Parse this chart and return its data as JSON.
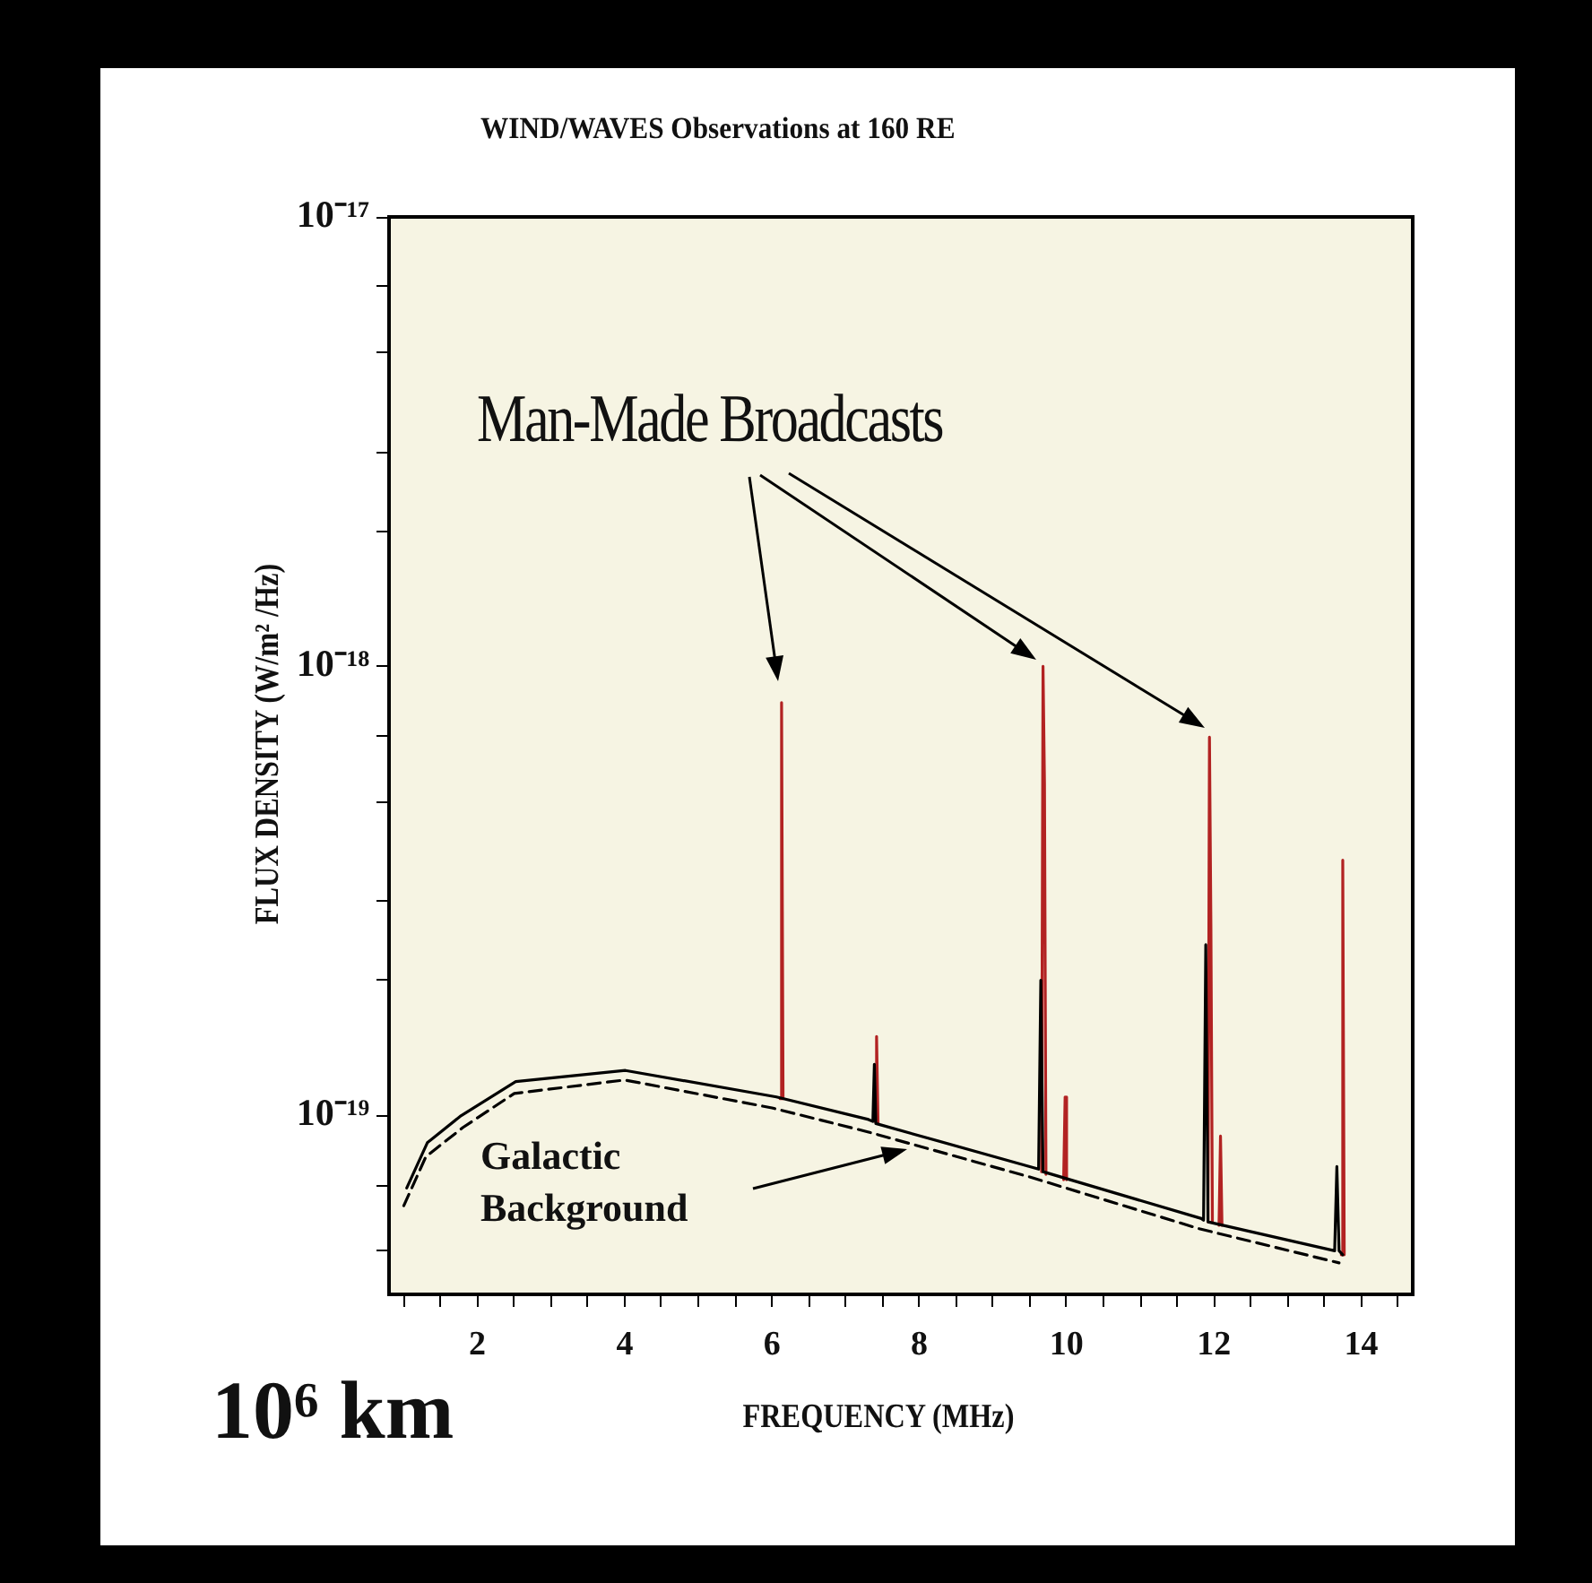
{
  "chart_data": {
    "type": "line",
    "title": "WIND/WAVES Observations at 160 RE",
    "xlabel": "FREQUENCY (MHz)",
    "ylabel": "FLUX DENSITY (W/m² /Hz)",
    "annotations": [
      "Man-Made Broadcasts",
      "Galactic Background",
      "10⁶ km"
    ],
    "log": "y",
    "marker": "none",
    "line_style": "solid",
    "xlim": [
      0.8,
      14.7
    ],
    "xticks": [
      {
        "value": 1,
        "label": null
      },
      {
        "value": 1.5,
        "label": null
      },
      2,
      {
        "value": 2.5,
        "label": null
      },
      {
        "value": 3,
        "label": null
      },
      {
        "value": 3.5,
        "label": null
      },
      4,
      {
        "value": 4.5,
        "label": null
      },
      {
        "value": 5,
        "label": null
      },
      {
        "value": 5.5,
        "label": null
      },
      6,
      {
        "value": 6.5,
        "label": null
      },
      {
        "value": 7,
        "label": null
      },
      {
        "value": 7.5,
        "label": null
      },
      8,
      {
        "value": 8.5,
        "label": null
      },
      {
        "value": 9,
        "label": null
      },
      {
        "value": 9.5,
        "label": null
      },
      10,
      {
        "value": 10.5,
        "label": null
      },
      {
        "value": 11,
        "label": null
      },
      {
        "value": 11.5,
        "label": null
      },
      12,
      {
        "value": 12.5,
        "label": null
      },
      {
        "value": 13,
        "label": null
      },
      {
        "value": 13.5,
        "label": null
      },
      14,
      {
        "value": 14.5,
        "label": null
      }
    ],
    "ylim": [
      4e-20,
      1e-17
    ],
    "yticks": [
      {
        "value": 5e-20,
        "label": null
      },
      {
        "value": 7e-20,
        "label": null
      },
      {
        "value": 1e-19,
        "label": "10⁻¹⁹"
      },
      {
        "value": 2e-19,
        "label": null
      },
      {
        "value": 3e-19,
        "label": null
      },
      {
        "value": 5e-19,
        "label": null
      },
      {
        "value": 7e-19,
        "label": null
      },
      {
        "value": 1e-18,
        "label": "10⁻¹⁸"
      },
      {
        "value": 2e-18,
        "label": null
      },
      {
        "value": 3e-18,
        "label": null
      },
      {
        "value": 5e-18,
        "label": null
      },
      {
        "value": 7e-18,
        "label": null
      },
      {
        "value": 1e-17,
        "label": "10⁻¹⁷"
      }
    ],
    "series": [
      {
        "color": "#000000",
        "x": [
          1.04,
          1.32,
          1.78,
          2.52,
          4.01,
          6.06,
          7.31,
          7.37,
          7.39,
          7.41,
          9.5,
          9.62,
          9.65,
          9.68,
          11.83,
          11.86,
          11.89,
          11.92,
          13.64,
          13.67,
          13.7,
          13.75
        ],
        "values": [
          6.9e-20,
          8.7e-20,
          1e-19,
          1.19e-19,
          1.26e-19,
          1.1e-19,
          9.8e-20,
          9.7e-20,
          1.3e-19,
          9.6e-20,
          7.7e-20,
          7.6e-20,
          2e-19,
          7.5e-20,
          5.9e-20,
          5.85e-20,
          2.4e-19,
          5.8e-20,
          5e-20,
          7.7e-20,
          5e-20,
          4.9e-20
        ]
      },
      {
        "color": "#b22222",
        "x": [
          6.11,
          6.13,
          6.15,
          6.5,
          7.4,
          7.42,
          7.44,
          8.5,
          9.66,
          9.68,
          9.7,
          9.72,
          9.85,
          9.96,
          9.98,
          10.0,
          11,
          11.92,
          11.94,
          11.96,
          11.98,
          12.03,
          12.07,
          12.09,
          12.11,
          13,
          13.73,
          13.75,
          13.77
        ],
        "values": [
          1.09e-19,
          8.3e-19,
          1.09e-19,
          null,
          9.7e-20,
          1.5e-19,
          9.6e-20,
          null,
          7.5e-20,
          1e-18,
          5.5e-19,
          7.4e-20,
          null,
          7.2e-20,
          1.1e-19,
          7.2e-20,
          null,
          5.8e-20,
          6.95e-19,
          2.6e-19,
          5.8e-20,
          null,
          5.7e-20,
          9e-20,
          5.7e-20,
          null,
          4.9e-20,
          3.7e-19,
          4.9e-20
        ]
      },
      {
        "color": "#000000",
        "line_style": "dashed",
        "x": [
          1.0,
          1.3,
          1.8,
          2.5,
          4.0,
          6.0,
          7.3,
          9.5,
          11.8,
          13.7
        ],
        "values": [
          6.3e-20,
          8.1e-20,
          9.4e-20,
          1.12e-19,
          1.2e-19,
          1.04e-19,
          9.2e-20,
          7.3e-20,
          5.6e-20,
          4.7e-20
        ]
      }
    ]
  }
}
